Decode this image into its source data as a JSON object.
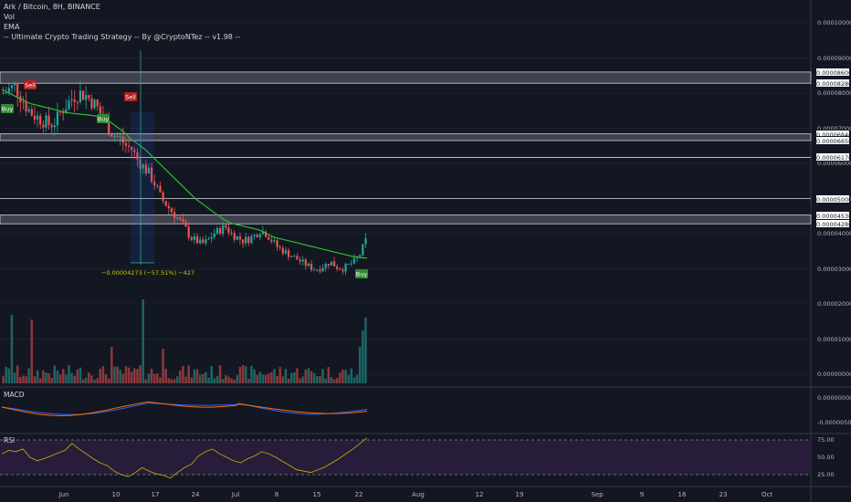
{
  "legend": {
    "symbol": "Ark / Bitcoin, 8H, BINANCE",
    "vol": "Vol",
    "ema": "EMA",
    "strategy": "-- Ultimate Crypto Trading Strategy -- By @CryptoNTez -- v1.98 --"
  },
  "panes": {
    "macd": "MACD",
    "rsi": "RSI"
  },
  "measure_label": "−0.00004273 (−57.51%) −427",
  "colors": {
    "background": "#131722",
    "up": "#26a69a",
    "down": "#ef5350",
    "ema": "#2ebd2e",
    "macd": "#2962ff",
    "signal": "#ff6d00",
    "rsi": "#c8b400",
    "rsi_band": "#2a1e3e",
    "signal_buy": "#2e8b2e",
    "signal_sell": "#b22222"
  },
  "chart_data": {
    "type": "candlestick",
    "title": "Ark / Bitcoin, 8H, BINANCE",
    "price_axis_ticks": [
      "0.00010000",
      "0.00009000",
      "0.00008000",
      "0.00007000",
      "0.00006000",
      "0.00005000",
      "0.00004000",
      "0.00003000",
      "0.00002000",
      "0.00001000",
      "0.00000000"
    ],
    "price_levels": [
      "0.00008600",
      "0.00008280",
      "0.00006840",
      "0.00006650",
      "0.00006170",
      "0.00005000",
      "0.00004530",
      "0.00004280"
    ],
    "price_level_zones": [
      [
        "0.00008280",
        "0.00008600"
      ],
      [
        "0.00006650",
        "0.00006840"
      ],
      [
        "0.00004280",
        "0.00004530"
      ]
    ],
    "macd_ticks": [
      "0.00000000",
      "-0.00000500"
    ],
    "rsi_ticks": [
      "75.00",
      "50.00",
      "25.00"
    ],
    "date_ticks": [
      "Jun",
      "10",
      "17",
      "24",
      "Jul",
      "8",
      "15",
      "22",
      "Aug",
      "12",
      "19",
      "Sep",
      "9",
      "16",
      "23",
      "Oct"
    ],
    "signals": [
      {
        "label": "Buy",
        "date": "late May"
      },
      {
        "label": "Sell",
        "date": "late May"
      },
      {
        "label": "Buy",
        "date": "Jun 8"
      },
      {
        "label": "Sell",
        "date": "Jun 12"
      },
      {
        "label": "Buy",
        "date": "Jul 23"
      }
    ],
    "close_path": [
      8e-05,
      8.1e-05,
      8.2e-05,
      7.9e-05,
      7.6e-05,
      7.4e-05,
      7.3e-05,
      7.2e-05,
      7.1e-05,
      7.2e-05,
      7.5e-05,
      7.7e-05,
      7.9e-05,
      8e-05,
      7.95e-05,
      7.8e-05,
      7.6e-05,
      7.3e-05,
      7e-05,
      6.8e-05,
      6.7e-05,
      6.5e-05,
      6.4e-05,
      6.1e-05,
      5.9e-05,
      5.7e-05,
      5.4e-05,
      5e-05,
      4.8e-05,
      4.6e-05,
      4.4e-05,
      4.2e-05,
      3.9e-05,
      3.8e-05,
      3.7e-05,
      3.8e-05,
      4e-05,
      4.1e-05,
      4.2e-05,
      4e-05,
      3.9e-05,
      3.8e-05,
      3.85e-05,
      3.95e-05,
      4.1e-05,
      4e-05,
      3.8e-05,
      3.6e-05,
      3.5e-05,
      3.4e-05,
      3.3e-05,
      3.2e-05,
      3.1e-05,
      3e-05,
      3e-05,
      3.1e-05,
      3.2e-05,
      3.05e-05,
      3e-05,
      3.1e-05,
      3.2e-05,
      3.4e-05,
      3.8e-05
    ],
    "ema_path": [
      8.1e-05,
      8e-05,
      7.9e-05,
      7.8e-05,
      7.7e-05,
      7.65e-05,
      7.6e-05,
      7.55e-05,
      7.5e-05,
      7.45e-05,
      7.42e-05,
      7.4e-05,
      7.38e-05,
      7.35e-05,
      7.3e-05,
      7.2e-05,
      7.05e-05,
      6.9e-05,
      6.7e-05,
      6.55e-05,
      6.4e-05,
      6.2e-05,
      6e-05,
      5.8e-05,
      5.6e-05,
      5.4e-05,
      5.2e-05,
      5e-05,
      4.85e-05,
      4.7e-05,
      4.55e-05,
      4.4e-05,
      4.3e-05,
      4.25e-05,
      4.2e-05,
      4.15e-05,
      4.1e-05,
      4e-05,
      3.9e-05,
      3.85e-05,
      3.8e-05,
      3.75e-05,
      3.7e-05,
      3.65e-05,
      3.6e-05,
      3.55e-05,
      3.5e-05,
      3.45e-05,
      3.4e-05,
      3.35e-05,
      3.32e-05,
      3.3e-05
    ],
    "rsi_path": [
      55,
      60,
      58,
      62,
      50,
      45,
      48,
      52,
      56,
      60,
      70,
      62,
      55,
      48,
      42,
      38,
      30,
      25,
      22,
      28,
      35,
      30,
      26,
      24,
      20,
      28,
      35,
      40,
      52,
      58,
      62,
      55,
      50,
      45,
      42,
      48,
      52,
      58,
      55,
      50,
      44,
      38,
      32,
      30,
      28,
      32,
      36,
      42,
      48,
      55,
      62,
      70,
      78
    ]
  }
}
